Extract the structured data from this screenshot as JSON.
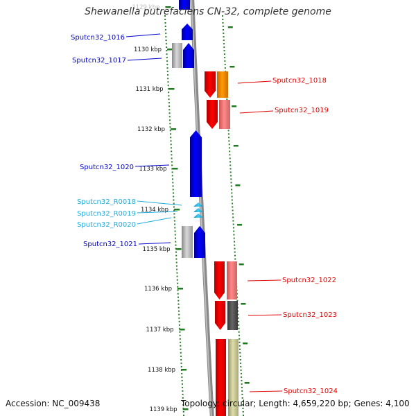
{
  "title": "Shewanella putrefaciens CN-32, complete genome",
  "footer": {
    "accession": "Accession: NC_009438",
    "topology": "Topology: circular; Length: 4,659,220 bp; Genes: 4,100"
  },
  "kbp_ticks": [
    "1129 kbp",
    "1130 kbp",
    "1131 kbp",
    "1132 kbp",
    "1133 kbp",
    "1134 kbp",
    "1135 kbp",
    "1136 kbp",
    "1137 kbp",
    "1138 kbp",
    "1139 kbp"
  ],
  "genes": [
    {
      "id": "Sputcn32_1016",
      "color": "#0000cc",
      "side": "left"
    },
    {
      "id": "Sputcn32_1017",
      "color": "#0000cc",
      "side": "left"
    },
    {
      "id": "Sputcn32_1018",
      "color": "#dd0000",
      "side": "right"
    },
    {
      "id": "Sputcn32_1019",
      "color": "#dd0000",
      "side": "right"
    },
    {
      "id": "Sputcn32_1020",
      "color": "#0000cc",
      "side": "left"
    },
    {
      "id": "Sputcn32_R0018",
      "color": "#22aadd",
      "side": "left"
    },
    {
      "id": "Sputcn32_R0019",
      "color": "#22aadd",
      "side": "left"
    },
    {
      "id": "Sputcn32_R0020",
      "color": "#22aadd",
      "side": "left"
    },
    {
      "id": "Sputcn32_1021",
      "color": "#0000cc",
      "side": "left"
    },
    {
      "id": "Sputcn32_1022",
      "color": "#dd0000",
      "side": "right"
    },
    {
      "id": "Sputcn32_1023",
      "color": "#dd0000",
      "side": "right"
    },
    {
      "id": "Sputcn32_1024",
      "color": "#dd0000",
      "side": "right"
    }
  ]
}
